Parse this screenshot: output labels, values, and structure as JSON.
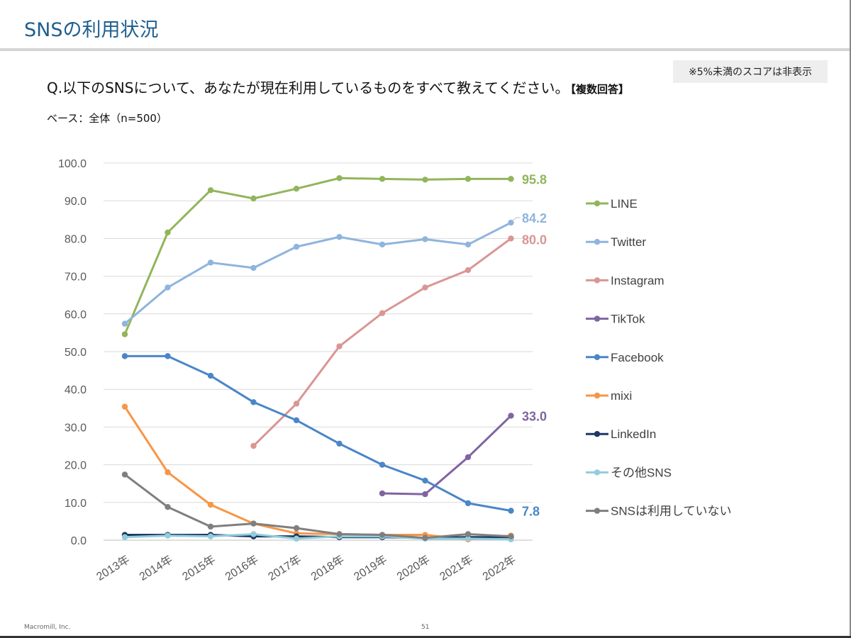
{
  "page": {
    "title": "SNSの利用状況",
    "note": "※5%未満のスコアは非表示",
    "question": "Q.以下のSNSについて、あなたが現在利用しているものをすべて教えてください。",
    "question_tag": "【複数回答】",
    "base": "ベース：全体（n=500）",
    "footer_company": "Macromill, Inc.",
    "footer_page": "51"
  },
  "chart_data": {
    "type": "line",
    "categories": [
      "2013年",
      "2014年",
      "2015年",
      "2016年",
      "2017年",
      "2018年",
      "2019年",
      "2020年",
      "2021年",
      "2022年"
    ],
    "ylim": [
      0,
      100
    ],
    "yticks": [
      "100.0",
      "90.0",
      "80.0",
      "70.0",
      "60.0",
      "50.0",
      "40.0",
      "30.0",
      "20.0",
      "10.0",
      "0.0"
    ],
    "grid": true,
    "legend_position": "right",
    "series": [
      {
        "name": "LINE",
        "color": "#92b55a",
        "values": [
          54.6,
          81.6,
          92.8,
          90.6,
          93.2,
          96.0,
          95.8,
          95.6,
          95.8,
          95.8
        ],
        "end_label": "95.8"
      },
      {
        "name": "Twitter",
        "color": "#8fb4de",
        "values": [
          57.4,
          67.0,
          73.6,
          72.2,
          77.8,
          80.4,
          78.4,
          79.8,
          78.4,
          84.2
        ],
        "end_label": "84.2"
      },
      {
        "name": "Instagram",
        "color": "#d99694",
        "values": [
          null,
          null,
          null,
          25.0,
          36.2,
          51.4,
          60.2,
          67.0,
          71.6,
          80.0
        ],
        "end_label": "80.0"
      },
      {
        "name": "TikTok",
        "color": "#8064a2",
        "values": [
          null,
          null,
          null,
          null,
          null,
          null,
          12.4,
          12.2,
          22.0,
          33.0
        ],
        "end_label": "33.0"
      },
      {
        "name": "Facebook",
        "color": "#4a86c8",
        "values": [
          48.8,
          48.8,
          43.6,
          36.6,
          31.8,
          25.6,
          20.0,
          15.8,
          9.8,
          7.8
        ],
        "end_label": "7.8"
      },
      {
        "name": "mixi",
        "color": "#f79646",
        "values": [
          35.4,
          18.0,
          9.4,
          4.4,
          1.8,
          1.6,
          1.4,
          1.4,
          0.2,
          1.2
        ],
        "end_label": ""
      },
      {
        "name": "LinkedIn",
        "color": "#1f3864",
        "values": [
          1.4,
          1.4,
          1.4,
          1.0,
          1.0,
          0.8,
          0.8,
          0.6,
          0.8,
          0.8
        ],
        "end_label": ""
      },
      {
        "name": "その他SNS",
        "color": "#92cddc",
        "values": [
          0.8,
          1.2,
          1.0,
          1.6,
          0.4,
          1.0,
          1.0,
          0.4,
          0.4,
          0.2
        ],
        "end_label": ""
      },
      {
        "name": "SNSは利用していない",
        "color": "#7f7f7f",
        "values": [
          17.4,
          8.8,
          3.6,
          4.4,
          3.2,
          1.6,
          1.4,
          0.6,
          1.6,
          1.0
        ],
        "end_label": ""
      }
    ]
  }
}
